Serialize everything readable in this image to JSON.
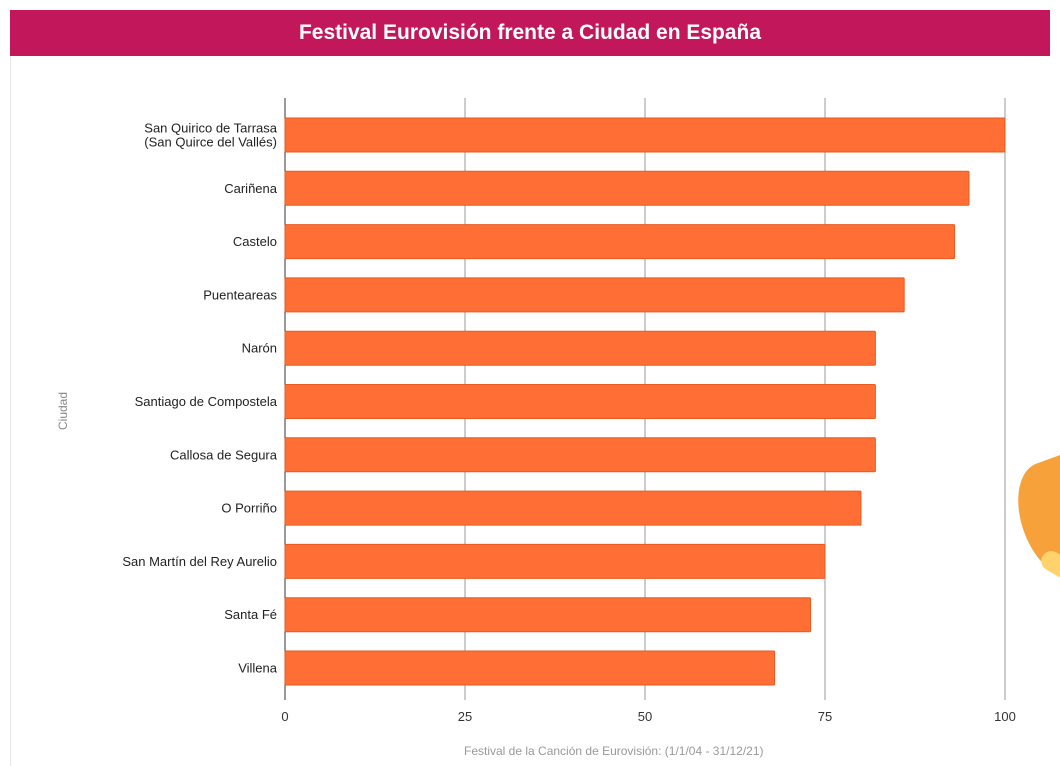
{
  "header": {
    "title": "Festival Eurovisión frente a Ciudad en España"
  },
  "chart_data": {
    "type": "bar",
    "orientation": "horizontal",
    "title": "Festival Eurovisión frente a Ciudad en España",
    "xlabel": "Festival de la Canción de Eurovisión: (1/1/04 - 31/12/21)",
    "ylabel": "Ciudad",
    "xlim": [
      0,
      100
    ],
    "xticks": [
      "0",
      "25",
      "50",
      "75",
      "100"
    ],
    "grid": true,
    "categories": [
      [
        "San Quirico de Tarrasa",
        "(San Quirce del Vallés)"
      ],
      [
        "Cariñena"
      ],
      [
        "Castelo"
      ],
      [
        "Puenteareas"
      ],
      [
        "Narón"
      ],
      [
        "Santiago de Compostela"
      ],
      [
        "Callosa de Segura"
      ],
      [
        "O Porriño"
      ],
      [
        "San Martín del Rey Aurelio"
      ],
      [
        "Santa Fé"
      ],
      [
        "Villena"
      ]
    ],
    "values": [
      100,
      95,
      93,
      86,
      82,
      82,
      82,
      80,
      75,
      73,
      68
    ],
    "bar_color": "#ff6f35",
    "bar_border_color": "#e85a20"
  }
}
